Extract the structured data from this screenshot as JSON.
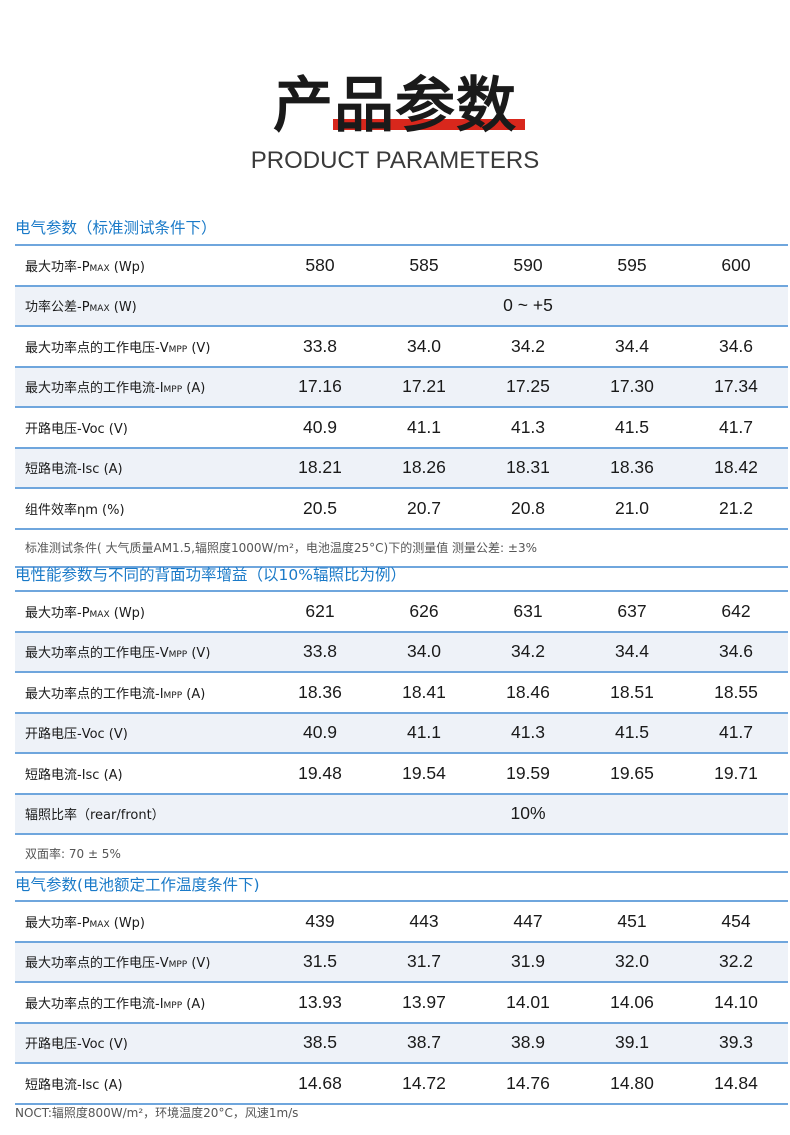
{
  "header": {
    "title_zh": "产品参数",
    "title_en": "PRODUCT PARAMETERS"
  },
  "section1": {
    "heading": "电气参数（标准测试条件下）",
    "rows": [
      {
        "label": "最大功率-P",
        "sub": "MAX",
        "unit": " (Wp)",
        "values": [
          "580",
          "585",
          "590",
          "595",
          "600"
        ]
      },
      {
        "label": "功率公差-P",
        "sub": "MAX",
        "unit": " (W)",
        "span": "0 ~ +5"
      },
      {
        "label": "最大功率点的工作电压-V",
        "sub": "MPP",
        "unit": " (V)",
        "values": [
          "33.8",
          "34.0",
          "34.2",
          "34.4",
          "34.6"
        ]
      },
      {
        "label": "最大功率点的工作电流-I",
        "sub": "MPP",
        "unit": " (A)",
        "values": [
          "17.16",
          "17.21",
          "17.25",
          "17.30",
          "17.34"
        ]
      },
      {
        "label": "开路电压-Voc (V)",
        "sub": "",
        "unit": "",
        "values": [
          "40.9",
          "41.1",
          "41.3",
          "41.5",
          "41.7"
        ]
      },
      {
        "label": "短路电流-Isc (A)",
        "sub": "",
        "unit": "",
        "values": [
          "18.21",
          "18.26",
          "18.31",
          "18.36",
          "18.42"
        ]
      },
      {
        "label": " 组件效率ηm (%)",
        "sub": "",
        "unit": "",
        "values": [
          "20.5",
          "20.7",
          "20.8",
          "21.0",
          "21.2"
        ]
      }
    ],
    "note": "标准测试条件( 大气质量AM1.5,辐照度1000W/m²，电池温度25°C)下的测量值 测量公差: ±3%"
  },
  "section2": {
    "heading": "电性能参数与不同的背面功率增益（以10%辐照比为例）",
    "rows": [
      {
        "label": "最大功率-P",
        "sub": "MAX",
        "unit": " (Wp)",
        "values": [
          "621",
          "626",
          "631",
          "637",
          "642"
        ]
      },
      {
        "label": "最大功率点的工作电压-V",
        "sub": "MPP",
        "unit": " (V)",
        "values": [
          "33.8",
          "34.0",
          "34.2",
          "34.4",
          "34.6"
        ]
      },
      {
        "label": "最大功率点的工作电流-I",
        "sub": "MPP",
        "unit": " (A)",
        "values": [
          "18.36",
          "18.41",
          "18.46",
          "18.51",
          "18.55"
        ]
      },
      {
        "label": "开路电压-Voc (V)",
        "sub": "",
        "unit": "",
        "values": [
          "40.9",
          "41.1",
          "41.3",
          "41.5",
          "41.7"
        ]
      },
      {
        "label": "短路电流-Isc (A)",
        "sub": "",
        "unit": "",
        "values": [
          "19.48",
          "19.54",
          "19.59",
          "19.65",
          "19.71"
        ]
      },
      {
        "label": "辐照比率（rear/front）",
        "sub": "",
        "unit": "",
        "span": "10%"
      }
    ],
    "note": "双面率:  70 ± 5%"
  },
  "section3": {
    "heading": "电气参数(电池额定工作温度条件下)",
    "rows": [
      {
        "label": "最大功率-P",
        "sub": "MAX",
        "unit": " (Wp)",
        "values": [
          "439",
          "443",
          "447",
          "451",
          "454"
        ]
      },
      {
        "label": "最大功率点的工作电压-V",
        "sub": "MPP",
        "unit": " (V)",
        "values": [
          "31.5",
          "31.7",
          "31.9",
          "32.0",
          "32.2"
        ]
      },
      {
        "label": "最大功率点的工作电流-I",
        "sub": "MPP",
        "unit": " (A)",
        "values": [
          "13.93",
          "13.97",
          "14.01",
          "14.06",
          "14.10"
        ]
      },
      {
        "label": "开路电压-Voc (V)",
        "sub": "",
        "unit": "",
        "values": [
          "38.5",
          "38.7",
          "38.9",
          "39.1",
          "39.3"
        ]
      },
      {
        "label": "短路电流-Isc (A)",
        "sub": "",
        "unit": "",
        "values": [
          "14.68",
          "14.72",
          "14.76",
          "14.80",
          "14.84"
        ]
      }
    ],
    "note": "NOCT:辐照度800W/m²，环境温度20°C，风速1m/s"
  },
  "colors": {
    "accent_red": "#d8271c",
    "heading_blue": "#1a7ac8",
    "rule_blue": "#6fa6dd",
    "stripe": "#eef2f8"
  }
}
